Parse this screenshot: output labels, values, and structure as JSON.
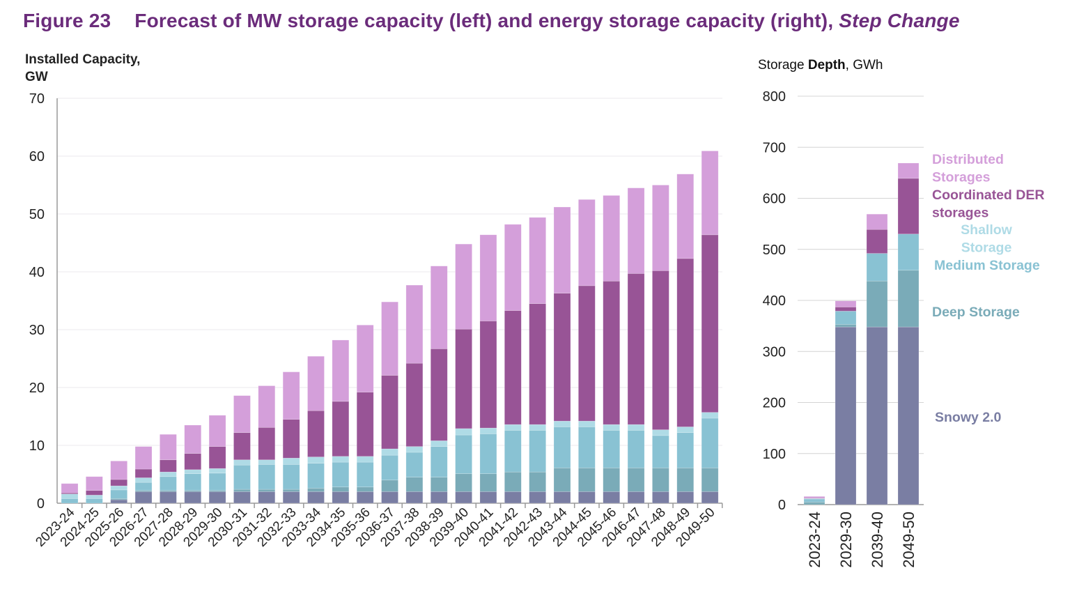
{
  "title": {
    "figure_number": "Figure 23",
    "main": "Forecast of MW storage capacity (left) and energy storage capacity (right),",
    "scenario": "Step Change"
  },
  "colors": {
    "title": "#6b2c7b",
    "Snowy 2.0": "#7a7ea3",
    "Deep Storage": "#7aabb8",
    "Medium Storage": "#89c2d3",
    "Shallow Storage": "#afdbe6",
    "Coordinated DER storages": "#985496",
    "Distributed Storages": "#d49fda"
  },
  "chart_data": [
    {
      "type": "bar",
      "stacked": true,
      "ylabel_lines": [
        "Installed Capacity,",
        "GW"
      ],
      "ylim": [
        0,
        70
      ],
      "yticks": [
        0,
        10,
        20,
        30,
        40,
        50,
        60,
        70
      ],
      "grid": true,
      "categories": [
        "2023-24",
        "2024-25",
        "2025-26",
        "2026-27",
        "2027-28",
        "2028-29",
        "2029-30",
        "2030-31",
        "2031-32",
        "2032-33",
        "2033-34",
        "2034-35",
        "2035-36",
        "2036-37",
        "2037-38",
        "2038-39",
        "2039-40",
        "2040-41",
        "2041-42",
        "2042-43",
        "2043-44",
        "2044-45",
        "2045-46",
        "2046-47",
        "2047-48",
        "2048-49",
        "2049-50"
      ],
      "series": [
        {
          "name": "Snowy 2.0",
          "values": [
            0,
            0,
            0.6,
            2.0,
            2.0,
            2.0,
            2.0,
            2.0,
            2.0,
            2.0,
            2.0,
            2.0,
            2.0,
            2.0,
            2.0,
            2.0,
            2.0,
            2.0,
            2.0,
            2.0,
            2.0,
            2.0,
            2.0,
            2.0,
            2.0,
            2.0,
            2.0
          ]
        },
        {
          "name": "Deep Storage",
          "values": [
            0,
            0,
            0.2,
            0.2,
            0.2,
            0.2,
            0.2,
            0.4,
            0.4,
            0.4,
            0.6,
            0.8,
            0.8,
            2.0,
            2.5,
            2.5,
            3.1,
            3.1,
            3.4,
            3.4,
            4.1,
            4.1,
            4.1,
            4.1,
            4.1,
            4.1,
            4.1
          ]
        },
        {
          "name": "Medium Storage",
          "values": [
            0.8,
            0.8,
            1.5,
            1.4,
            2.4,
            2.9,
            3.0,
            4.2,
            4.3,
            4.3,
            4.3,
            4.3,
            4.3,
            4.3,
            4.3,
            5.3,
            6.7,
            6.9,
            7.2,
            7.2,
            7.1,
            7.1,
            6.5,
            6.5,
            5.6,
            6.1,
            8.6
          ]
        },
        {
          "name": "Shallow Storage",
          "values": [
            0.8,
            0.6,
            0.7,
            0.8,
            0.8,
            0.7,
            0.8,
            0.9,
            0.8,
            1.1,
            1.1,
            1.0,
            1.0,
            1.1,
            1.0,
            1.0,
            1.1,
            1.0,
            1.0,
            1.0,
            1.0,
            1.0,
            1.0,
            1.0,
            1.0,
            1.0,
            1.0
          ]
        },
        {
          "name": "Coordinated DER storages",
          "values": [
            0.2,
            0.8,
            1.1,
            1.5,
            2.1,
            2.8,
            3.8,
            4.7,
            5.6,
            6.7,
            8.0,
            9.5,
            11.1,
            12.7,
            14.4,
            15.9,
            17.2,
            18.5,
            19.7,
            20.9,
            22.1,
            23.4,
            24.8,
            26.1,
            27.5,
            29.1,
            30.7
          ]
        },
        {
          "name": "Distributed Storages",
          "values": [
            1.6,
            2.4,
            3.2,
            3.9,
            4.4,
            4.9,
            5.4,
            6.4,
            7.2,
            8.2,
            9.4,
            10.6,
            11.6,
            12.7,
            13.5,
            14.3,
            14.7,
            14.9,
            14.9,
            14.9,
            14.9,
            14.9,
            14.8,
            14.8,
            14.8,
            14.6,
            14.5
          ]
        }
      ]
    },
    {
      "type": "bar",
      "stacked": true,
      "ylabel_prefix": "Storage ",
      "ylabel_bold": "Depth",
      "ylabel_suffix": ", GWh",
      "ylim": [
        0,
        800
      ],
      "yticks": [
        0,
        100,
        200,
        300,
        400,
        500,
        600,
        700,
        800
      ],
      "grid": true,
      "legend_placement": "right",
      "categories": [
        "2023-24",
        "2029-30",
        "2039-40",
        "2049-50"
      ],
      "series": [
        {
          "name": "Snowy 2.0",
          "values": [
            0,
            348,
            348,
            348
          ]
        },
        {
          "name": "Deep Storage",
          "values": [
            5,
            5,
            90,
            111
          ]
        },
        {
          "name": "Medium Storage",
          "values": [
            6,
            26,
            54,
            71
          ]
        },
        {
          "name": "Shallow Storage",
          "values": [
            1,
            0,
            0,
            0
          ]
        },
        {
          "name": "Coordinated DER storages",
          "values": [
            1,
            8,
            47,
            109
          ]
        },
        {
          "name": "Distributed Storages",
          "values": [
            3,
            12,
            30,
            30
          ]
        }
      ],
      "legend": [
        {
          "series": "Distributed Storages",
          "lines": [
            "Distributed",
            "Storages"
          ]
        },
        {
          "series": "Coordinated DER storages",
          "lines": [
            "Coordinated DER",
            "storages"
          ]
        },
        {
          "series": "Shallow Storage",
          "lines": [
            "Shallow",
            "Storage"
          ]
        },
        {
          "series": "Medium Storage",
          "lines": [
            "Medium Storage"
          ]
        },
        {
          "series": "Deep Storage",
          "lines": [
            "Deep Storage"
          ]
        },
        {
          "series": "Snowy 2.0",
          "lines": [
            "Snowy 2.0"
          ]
        }
      ]
    }
  ]
}
